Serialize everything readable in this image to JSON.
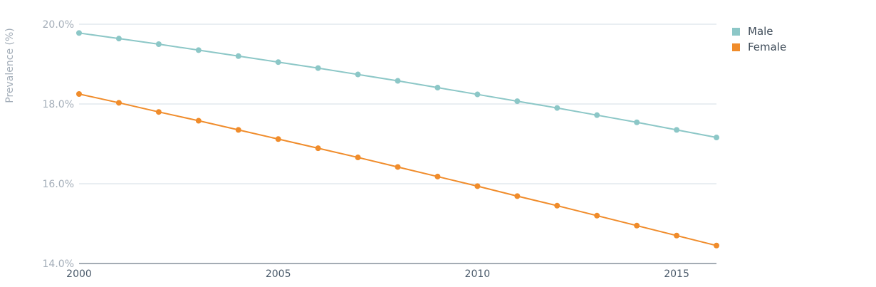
{
  "chart_data": {
    "type": "line",
    "title": "",
    "xlabel": "",
    "ylabel": "Prevalence (%)",
    "x": [
      2000,
      2001,
      2002,
      2003,
      2004,
      2005,
      2006,
      2007,
      2008,
      2009,
      2010,
      2011,
      2012,
      2013,
      2014,
      2015,
      2016
    ],
    "xlim": [
      2000,
      2016
    ],
    "xticks": [
      2000,
      2005,
      2010,
      2015
    ],
    "ylim": [
      14,
      20
    ],
    "yticks": [
      14,
      16,
      18,
      20
    ],
    "ytick_labels": [
      "14.0%",
      "16.0%",
      "18.0%",
      "20.0%"
    ],
    "grid": true,
    "legend_position": "top-right",
    "series": [
      {
        "name": "Male",
        "color": "#8cc7c7",
        "values": [
          19.78,
          19.64,
          19.5,
          19.35,
          19.2,
          19.05,
          18.9,
          18.74,
          18.58,
          18.41,
          18.24,
          18.07,
          17.9,
          17.72,
          17.54,
          17.35,
          17.16
        ]
      },
      {
        "name": "Female",
        "color": "#f08c2b",
        "values": [
          18.25,
          18.03,
          17.8,
          17.58,
          17.35,
          17.12,
          16.89,
          16.66,
          16.42,
          16.18,
          15.94,
          15.69,
          15.45,
          15.2,
          14.95,
          14.7,
          14.45
        ]
      }
    ]
  }
}
